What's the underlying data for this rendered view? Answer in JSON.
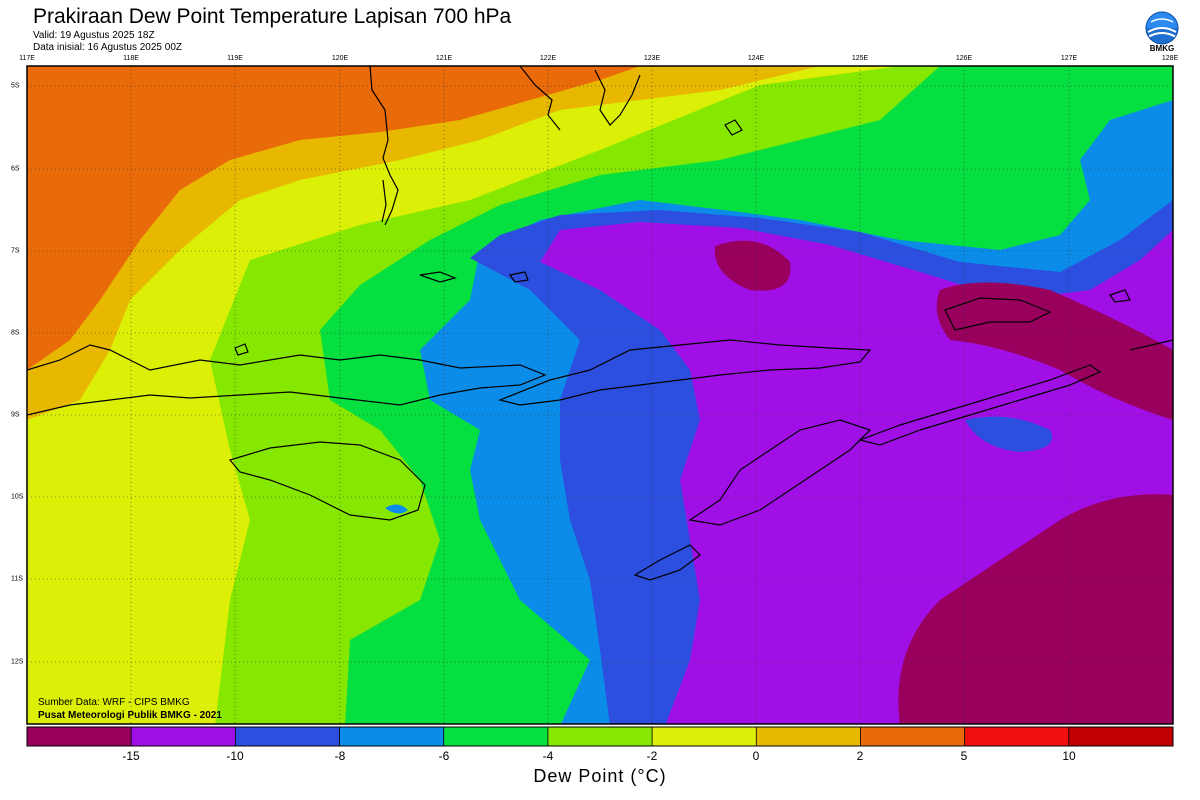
{
  "header": {
    "title": "Prakiraan Dew Point Temperature Lapisan 700 hPa",
    "valid": "Valid: 19 Agustus 2025 18Z",
    "init": "Data inisial: 16 Agustus 2025 00Z",
    "logo_text": "BMKG"
  },
  "map": {
    "lon_labels": [
      "117E",
      "118E",
      "119E",
      "120E",
      "121E",
      "122E",
      "123E",
      "124E",
      "125E",
      "126E",
      "127E",
      "128E"
    ],
    "lat_labels": [
      "5S",
      "6S",
      "7S",
      "8S",
      "9S",
      "10S",
      "11S",
      "12S"
    ],
    "credits": [
      "Sumber Data: WRF - CIPS BMKG",
      "Pusat Meteorologi Publik BMKG - 2021"
    ]
  },
  "colorbar": {
    "title": "Dew Point (°C)",
    "ticks": [
      "-15",
      "-10",
      "-8",
      "-6",
      "-4",
      "-2",
      "0",
      "2",
      "5",
      "10"
    ],
    "colors": [
      "#99005e",
      "#a010e6",
      "#2c4fe0",
      "#0b8ce8",
      "#05e040",
      "#86e800",
      "#dcef06",
      "#e8b800",
      "#e86a08",
      "#f21010",
      "#c00000"
    ]
  },
  "colors": {
    "c_lt15": "#99005e",
    "c_15_10": "#a010e6",
    "c_10_8": "#2c4fe0",
    "c_8_6": "#0b8ce8",
    "c_6_4": "#05e040",
    "c_4_2": "#86e800",
    "c_2_0": "#dcef06",
    "c_0_2": "#e8b800",
    "c_2_5": "#e86a08"
  }
}
